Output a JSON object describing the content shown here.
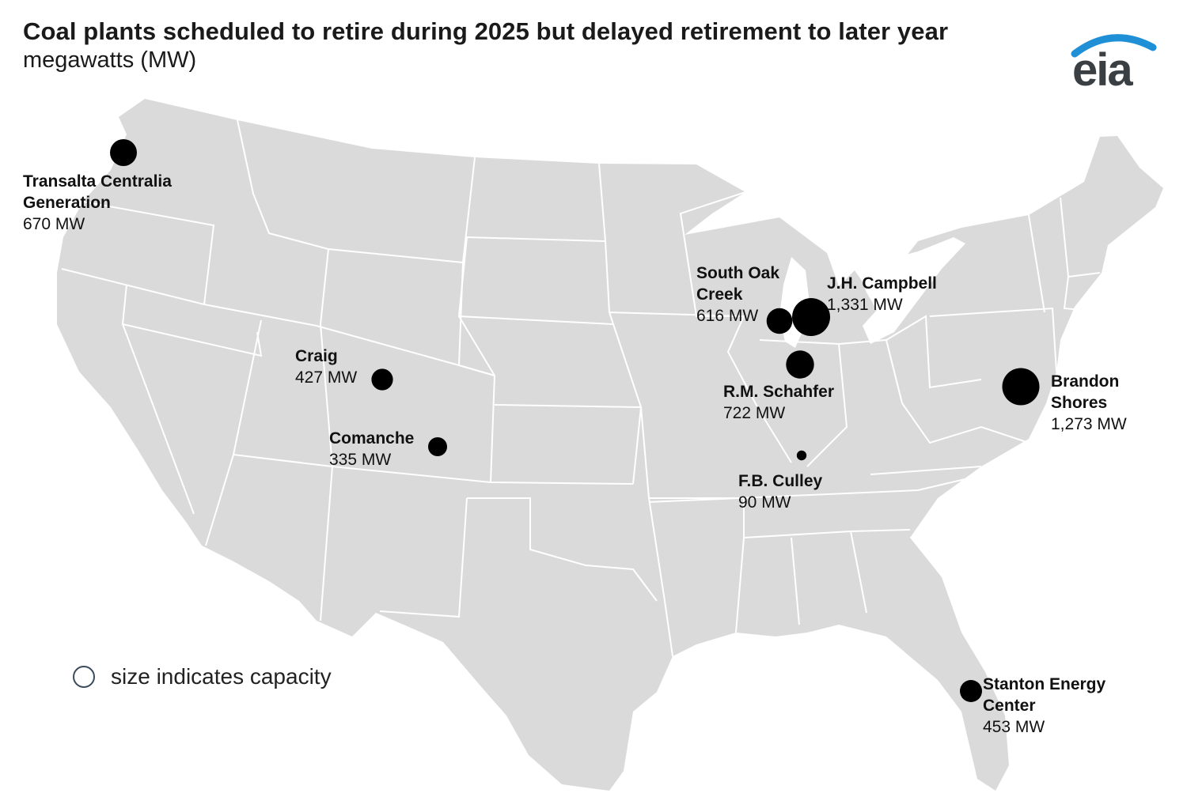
{
  "header": {
    "title": "Coal plants scheduled to retire during 2025 but delayed retirement to later year",
    "subtitle": "megawatts (MW)"
  },
  "logo": {
    "text": "eia",
    "brand_color": "#1f8fd6"
  },
  "legend": {
    "text": "size indicates capacity",
    "icon": "hollow-circle-icon"
  },
  "colors": {
    "land": "#dadada",
    "border": "#ffffff",
    "marker": "#000000"
  },
  "plants": [
    {
      "name_lines": [
        "Transalta Centralia",
        "Generation"
      ],
      "capacity": "670 MW",
      "mw": 670
    },
    {
      "name_lines": [
        "South Oak",
        "Creek"
      ],
      "capacity": "616 MW",
      "mw": 616
    },
    {
      "name_lines": [
        "J.H. Campbell"
      ],
      "capacity": "1,331 MW",
      "mw": 1331
    },
    {
      "name_lines": [
        "R.M. Schahfer"
      ],
      "capacity": "722 MW",
      "mw": 722
    },
    {
      "name_lines": [
        "Craig"
      ],
      "capacity": "427 MW",
      "mw": 427
    },
    {
      "name_lines": [
        "Comanche"
      ],
      "capacity": "335 MW",
      "mw": 335
    },
    {
      "name_lines": [
        "F.B. Culley"
      ],
      "capacity": "90 MW",
      "mw": 90
    },
    {
      "name_lines": [
        "Brandon",
        "Shores"
      ],
      "capacity": "1,273 MW",
      "mw": 1273
    },
    {
      "name_lines": [
        "Stanton Energy",
        "Center"
      ],
      "capacity": "453 MW",
      "mw": 453
    }
  ]
}
